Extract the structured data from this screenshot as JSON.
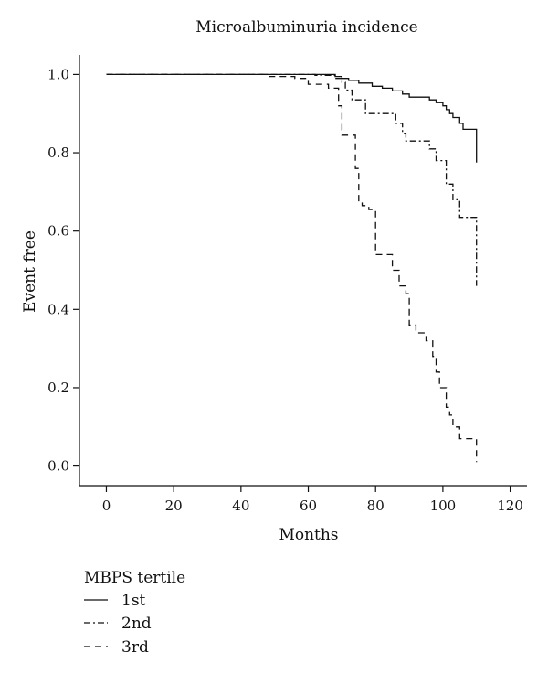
{
  "chart_data": {
    "type": "line",
    "title": "Microalbuminuria incidence",
    "xlabel": "Months",
    "ylabel": "Event free",
    "xlim": [
      -8,
      125
    ],
    "ylim": [
      -0.05,
      1.05
    ],
    "x_ticks": [
      0,
      20,
      40,
      60,
      80,
      100,
      120
    ],
    "y_ticks": [
      0.0,
      0.2,
      0.4,
      0.6,
      0.8,
      1.0
    ],
    "x_tick_labels": [
      "0",
      "20",
      "40",
      "60",
      "80",
      "100",
      "120"
    ],
    "y_tick_labels": [
      "0.0",
      "0.2",
      "0.4",
      "0.6",
      "0.8",
      "1.0"
    ],
    "grid": false,
    "legend": {
      "title": "MBPS tertile",
      "placement": "bottom-left",
      "entries": [
        "1st",
        "2nd",
        "3rd"
      ]
    },
    "series": [
      {
        "name": "1st",
        "line_style": "solid",
        "points": [
          [
            0,
            1.0
          ],
          [
            68,
            1.0
          ],
          [
            68,
            0.995
          ],
          [
            70,
            0.995
          ],
          [
            70,
            0.99
          ],
          [
            72,
            0.99
          ],
          [
            72,
            0.985
          ],
          [
            75,
            0.985
          ],
          [
            75,
            0.978
          ],
          [
            79,
            0.978
          ],
          [
            79,
            0.97
          ],
          [
            82,
            0.97
          ],
          [
            82,
            0.965
          ],
          [
            85,
            0.965
          ],
          [
            85,
            0.958
          ],
          [
            88,
            0.958
          ],
          [
            88,
            0.95
          ],
          [
            90,
            0.95
          ],
          [
            90,
            0.942
          ],
          [
            96,
            0.942
          ],
          [
            96,
            0.935
          ],
          [
            98,
            0.935
          ],
          [
            98,
            0.928
          ],
          [
            100,
            0.928
          ],
          [
            100,
            0.92
          ],
          [
            101,
            0.92
          ],
          [
            101,
            0.91
          ],
          [
            102,
            0.91
          ],
          [
            102,
            0.9
          ],
          [
            103,
            0.9
          ],
          [
            103,
            0.89
          ],
          [
            105,
            0.89
          ],
          [
            105,
            0.875
          ],
          [
            106,
            0.875
          ],
          [
            106,
            0.86
          ],
          [
            110,
            0.86
          ],
          [
            110,
            0.775
          ]
        ]
      },
      {
        "name": "2nd",
        "line_style": "dashdot",
        "points": [
          [
            0,
            1.0
          ],
          [
            62,
            1.0
          ],
          [
            62,
            0.998
          ],
          [
            68,
            0.998
          ],
          [
            68,
            0.99
          ],
          [
            70,
            0.99
          ],
          [
            70,
            0.98
          ],
          [
            71,
            0.98
          ],
          [
            71,
            0.96
          ],
          [
            73,
            0.96
          ],
          [
            73,
            0.935
          ],
          [
            77,
            0.935
          ],
          [
            77,
            0.9
          ],
          [
            86,
            0.9
          ],
          [
            86,
            0.875
          ],
          [
            88,
            0.875
          ],
          [
            88,
            0.85
          ],
          [
            89,
            0.85
          ],
          [
            89,
            0.83
          ],
          [
            96,
            0.83
          ],
          [
            96,
            0.81
          ],
          [
            98,
            0.81
          ],
          [
            98,
            0.78
          ],
          [
            101,
            0.78
          ],
          [
            101,
            0.72
          ],
          [
            103,
            0.72
          ],
          [
            103,
            0.68
          ],
          [
            105,
            0.68
          ],
          [
            105,
            0.635
          ],
          [
            110,
            0.635
          ],
          [
            110,
            0.46
          ]
        ]
      },
      {
        "name": "3rd",
        "line_style": "dashed",
        "points": [
          [
            0,
            1.0
          ],
          [
            48,
            1.0
          ],
          [
            48,
            0.995
          ],
          [
            56,
            0.995
          ],
          [
            56,
            0.99
          ],
          [
            60,
            0.99
          ],
          [
            60,
            0.975
          ],
          [
            66,
            0.975
          ],
          [
            66,
            0.965
          ],
          [
            69,
            0.965
          ],
          [
            69,
            0.92
          ],
          [
            70,
            0.92
          ],
          [
            70,
            0.845
          ],
          [
            74,
            0.845
          ],
          [
            74,
            0.76
          ],
          [
            75,
            0.76
          ],
          [
            75,
            0.675
          ],
          [
            76,
            0.675
          ],
          [
            76,
            0.665
          ],
          [
            78,
            0.665
          ],
          [
            78,
            0.655
          ],
          [
            80,
            0.655
          ],
          [
            80,
            0.54
          ],
          [
            85,
            0.54
          ],
          [
            85,
            0.5
          ],
          [
            87,
            0.5
          ],
          [
            87,
            0.46
          ],
          [
            89,
            0.46
          ],
          [
            89,
            0.44
          ],
          [
            90,
            0.44
          ],
          [
            90,
            0.36
          ],
          [
            92,
            0.36
          ],
          [
            92,
            0.34
          ],
          [
            95,
            0.34
          ],
          [
            95,
            0.32
          ],
          [
            97,
            0.32
          ],
          [
            97,
            0.28
          ],
          [
            98,
            0.28
          ],
          [
            98,
            0.24
          ],
          [
            99,
            0.24
          ],
          [
            99,
            0.2
          ],
          [
            101,
            0.2
          ],
          [
            101,
            0.15
          ],
          [
            102,
            0.15
          ],
          [
            102,
            0.13
          ],
          [
            103,
            0.13
          ],
          [
            103,
            0.1
          ],
          [
            105,
            0.1
          ],
          [
            105,
            0.07
          ],
          [
            110,
            0.07
          ],
          [
            110,
            0.01
          ]
        ]
      }
    ]
  }
}
